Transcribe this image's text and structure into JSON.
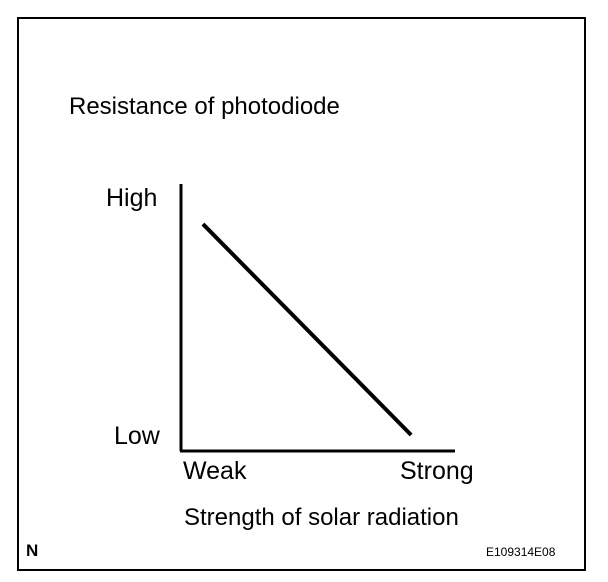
{
  "figure_code": "E109314E08",
  "corner_mark": "N",
  "colors": {
    "line": "#000000",
    "background": "#ffffff"
  },
  "chart_data": {
    "type": "line",
    "title": "",
    "ylabel": "Resistance of photodiode",
    "xlabel": "Strength of solar radiation",
    "x_ticks": [
      "Weak",
      "Strong"
    ],
    "y_ticks": [
      "High",
      "Low"
    ],
    "xlim": [
      0,
      1
    ],
    "ylim": [
      0,
      1
    ],
    "grid": false,
    "series": [
      {
        "x": [
          0.08,
          0.84
        ],
        "y": [
          0.85,
          0.06
        ]
      }
    ]
  }
}
